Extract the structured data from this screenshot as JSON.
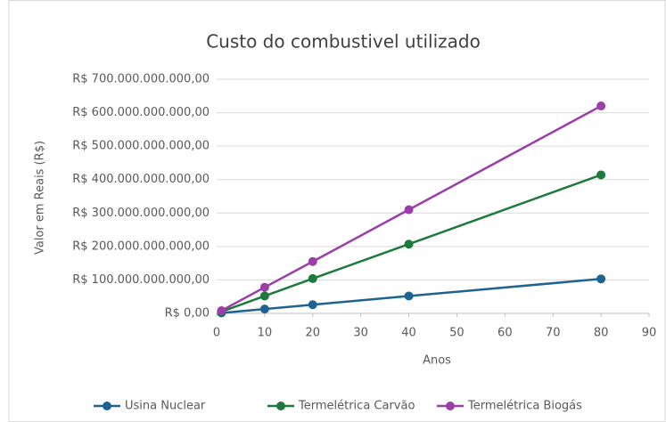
{
  "chart_data": {
    "type": "line",
    "title": "Custo do combustivel utilizado",
    "x_label": "Anos",
    "y_label": "Valor em Reais (R$)",
    "x": [
      1,
      10,
      20,
      40,
      80
    ],
    "series": [
      {
        "name": "Usina Nuclear",
        "color": "#1f6391",
        "values": [
          1300000000,
          13000000000,
          26000000000,
          52000000000,
          103000000000
        ]
      },
      {
        "name": "Termelétrica Carvão",
        "color": "#1e7a3c",
        "values": [
          5000000000,
          52000000000,
          104000000000,
          207000000000,
          414000000000
        ]
      },
      {
        "name": "Termelétrica Biogás",
        "color": "#9b3fa8",
        "values": [
          8000000000,
          78000000000,
          155000000000,
          310000000000,
          620000000000
        ]
      }
    ],
    "xlim": [
      0,
      90
    ],
    "xticks": [
      0,
      10,
      20,
      30,
      40,
      50,
      60,
      70,
      80,
      90
    ],
    "ylim": [
      0,
      700000000000
    ],
    "yticks": [
      {
        "value": 0,
        "label": "R$ 0,00"
      },
      {
        "value": 100000000000,
        "label": "R$ 100.000.000.000,00"
      },
      {
        "value": 200000000000,
        "label": "R$ 200.000.000.000,00"
      },
      {
        "value": 300000000000,
        "label": "R$ 300.000.000.000,00"
      },
      {
        "value": 400000000000,
        "label": "R$ 400.000.000.000,00"
      },
      {
        "value": 500000000000,
        "label": "R$ 500.000.000.000,00"
      },
      {
        "value": 600000000000,
        "label": "R$ 600.000.000.000,00"
      },
      {
        "value": 700000000000,
        "label": "R$ 700.000.000.000,00"
      }
    ],
    "grid": true,
    "legend": "bottom"
  }
}
